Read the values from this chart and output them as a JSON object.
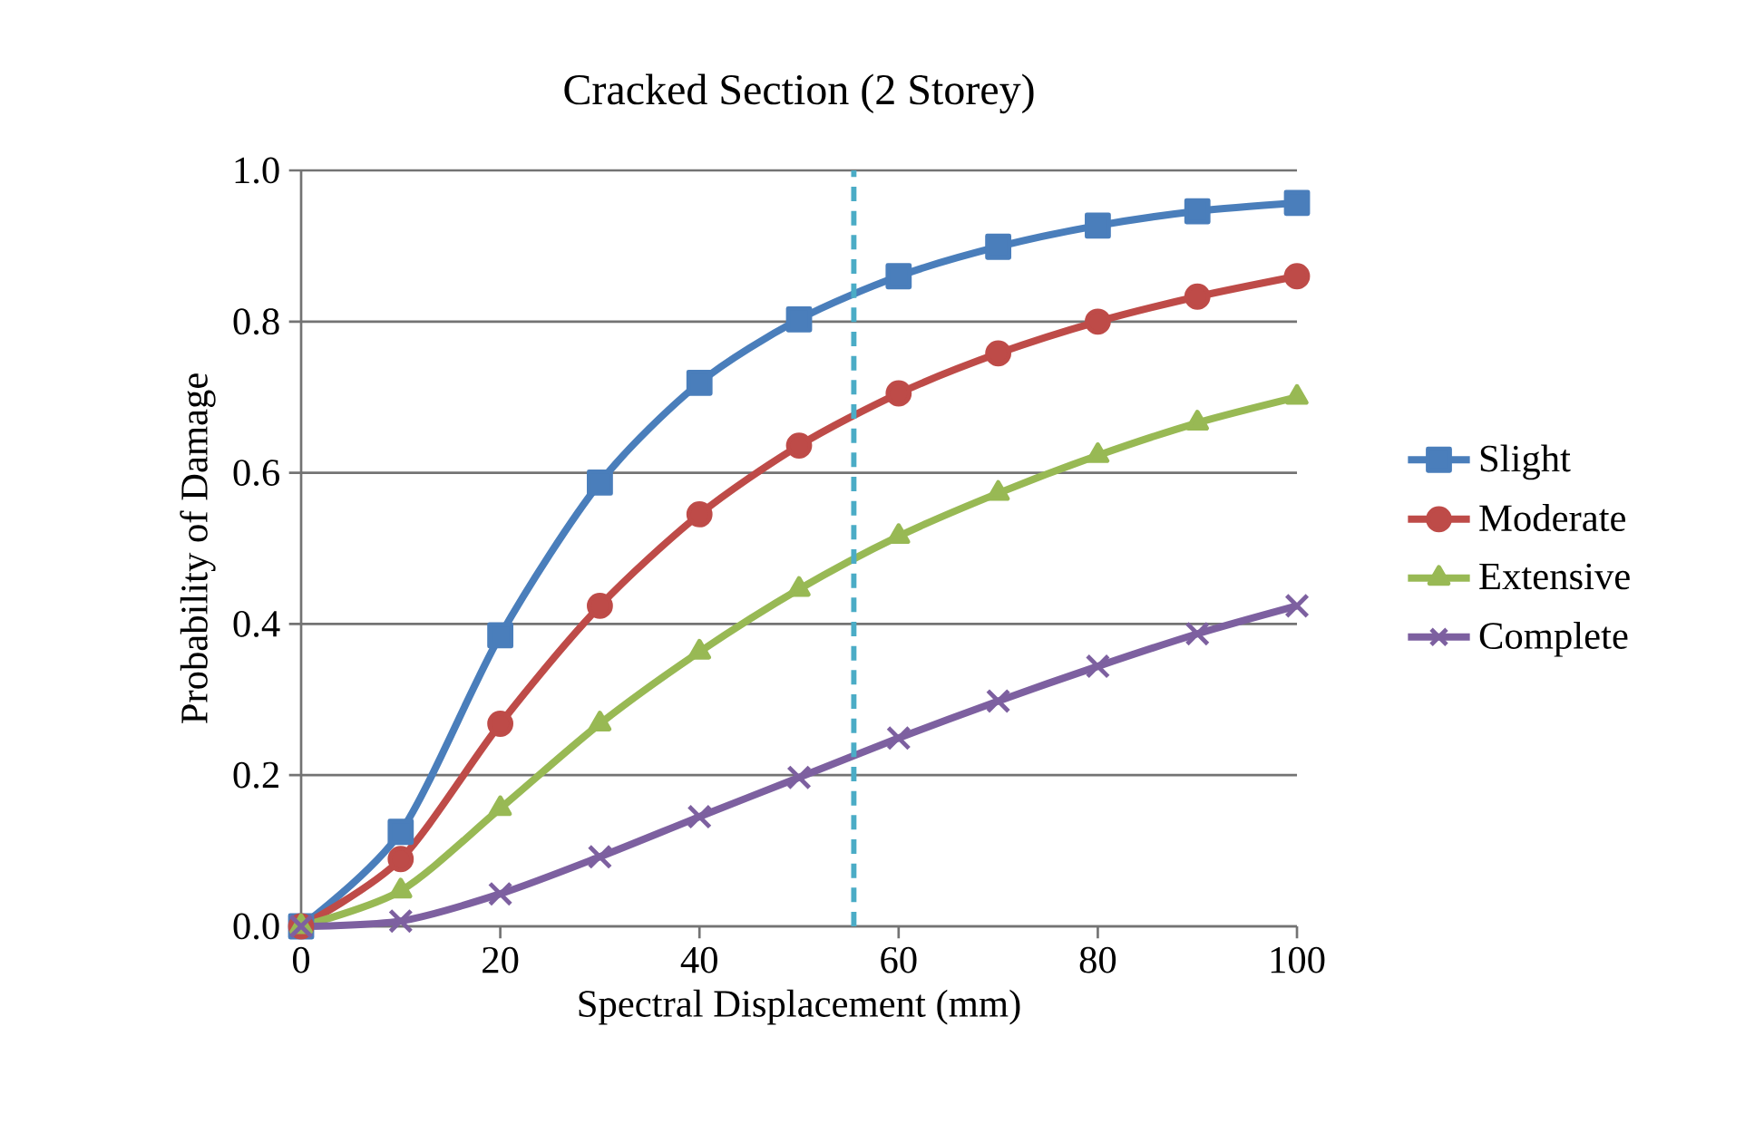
{
  "chart_data": {
    "type": "line",
    "title": "Cracked Section (2 Storey)",
    "xlabel": "Spectral Displacement (mm)",
    "ylabel": "Probability of Damage",
    "x": [
      0,
      10,
      20,
      30,
      40,
      50,
      60,
      70,
      80,
      90,
      100
    ],
    "series": [
      {
        "name": "Slight",
        "color": "#4a7ebb",
        "marker": "square",
        "values": [
          0,
          0.125,
          0.385,
          0.587,
          0.719,
          0.803,
          0.86,
          0.899,
          0.927,
          0.946,
          0.957
        ]
      },
      {
        "name": "Moderate",
        "color": "#be4b48",
        "marker": "circle",
        "values": [
          0,
          0.089,
          0.268,
          0.424,
          0.545,
          0.636,
          0.705,
          0.758,
          0.8,
          0.833,
          0.86
        ]
      },
      {
        "name": "Extensive",
        "color": "#98b954",
        "marker": "triangle",
        "values": [
          0,
          0.047,
          0.156,
          0.268,
          0.363,
          0.446,
          0.516,
          0.573,
          0.623,
          0.666,
          0.7
        ]
      },
      {
        "name": "Complete",
        "color": "#7d60a0",
        "marker": "cross",
        "values": [
          0,
          0.007,
          0.043,
          0.092,
          0.145,
          0.197,
          0.249,
          0.298,
          0.344,
          0.387,
          0.424
        ]
      }
    ],
    "xlim": [
      0,
      100
    ],
    "xticks": [
      0,
      20,
      40,
      60,
      80,
      100
    ],
    "ylim": [
      0,
      1
    ],
    "yticks": [
      {
        "value": 0,
        "label": "0.0"
      },
      {
        "value": 0.2,
        "label": "0.2"
      },
      {
        "value": 0.4,
        "label": "0.4"
      },
      {
        "value": 0.6,
        "label": "0.6"
      },
      {
        "value": 0.8,
        "label": "0.8"
      },
      {
        "value": 1,
        "label": "1.0"
      }
    ],
    "ref_lines": [
      {
        "axis": "x",
        "value": 55.5,
        "color": "#4bacc6",
        "line_style": "dashed"
      }
    ],
    "grid": "y",
    "legend": "right",
    "line_style": "solid"
  }
}
